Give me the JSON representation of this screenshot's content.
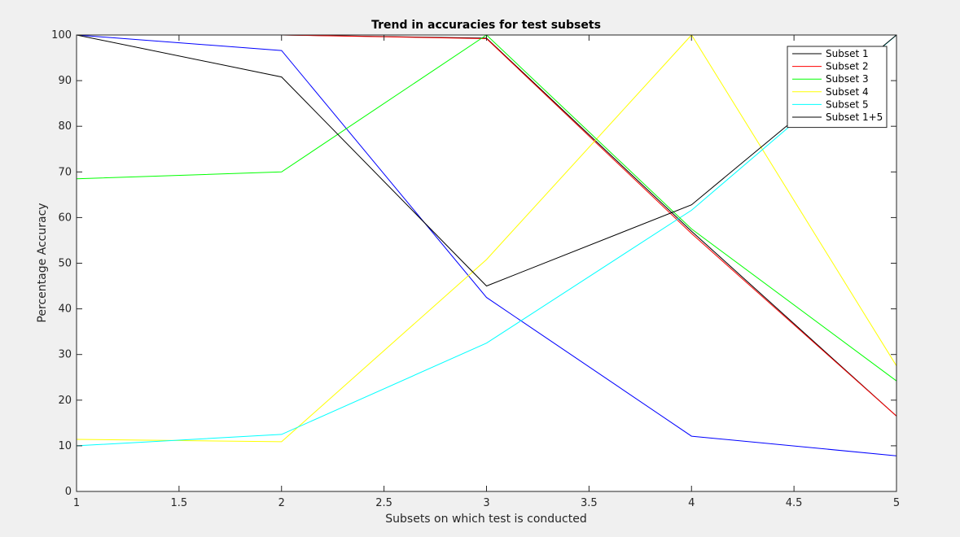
{
  "chart_data": {
    "type": "line",
    "title": "Trend in accuracies for test subsets",
    "xlabel": "Subsets on which test is conducted",
    "ylabel": "Percentage Accuracy",
    "xlim": [
      1,
      5
    ],
    "ylim": [
      0,
      100
    ],
    "xticks": [
      1,
      1.5,
      2,
      2.5,
      3,
      3.5,
      4,
      4.5,
      5
    ],
    "xtick_labels": [
      "1",
      "1.5",
      "2",
      "2.5",
      "3",
      "3.5",
      "4",
      "4.5",
      "5"
    ],
    "yticks": [
      0,
      10,
      20,
      30,
      40,
      50,
      60,
      70,
      80,
      90,
      100
    ],
    "ytick_labels": [
      "0",
      "10",
      "20",
      "30",
      "40",
      "50",
      "60",
      "70",
      "80",
      "90",
      "100"
    ],
    "grid": false,
    "legend_position": "top-right",
    "x": [
      1,
      2,
      3,
      4,
      5
    ],
    "series": [
      {
        "name": "Subset 1",
        "color": "#000000",
        "values": [
          100,
          100,
          99.3,
          57,
          16.5
        ]
      },
      {
        "name": "Subset 2",
        "color": "#ff0000",
        "values": [
          100,
          100,
          99.2,
          56.5,
          16.5
        ]
      },
      {
        "name": "Subset 3",
        "color": "#00ff00",
        "values": [
          68.5,
          70,
          100,
          57.5,
          24.2
        ]
      },
      {
        "name": "Subset 4",
        "color": "#ffff00",
        "values": [
          11.4,
          10.9,
          50.8,
          100,
          27.5
        ]
      },
      {
        "name": "Subset 5",
        "color": "#00ffff",
        "values": [
          10,
          12.5,
          32.5,
          61.6,
          100
        ]
      },
      {
        "name": "Subset 1+5",
        "color": "#000000",
        "values": [
          100,
          90.8,
          45,
          62.8,
          100
        ]
      }
    ],
    "extra_lines": [
      {
        "color": "#0000ff",
        "values": [
          100,
          96.6,
          42.5,
          12.1,
          7.8
        ]
      }
    ]
  }
}
